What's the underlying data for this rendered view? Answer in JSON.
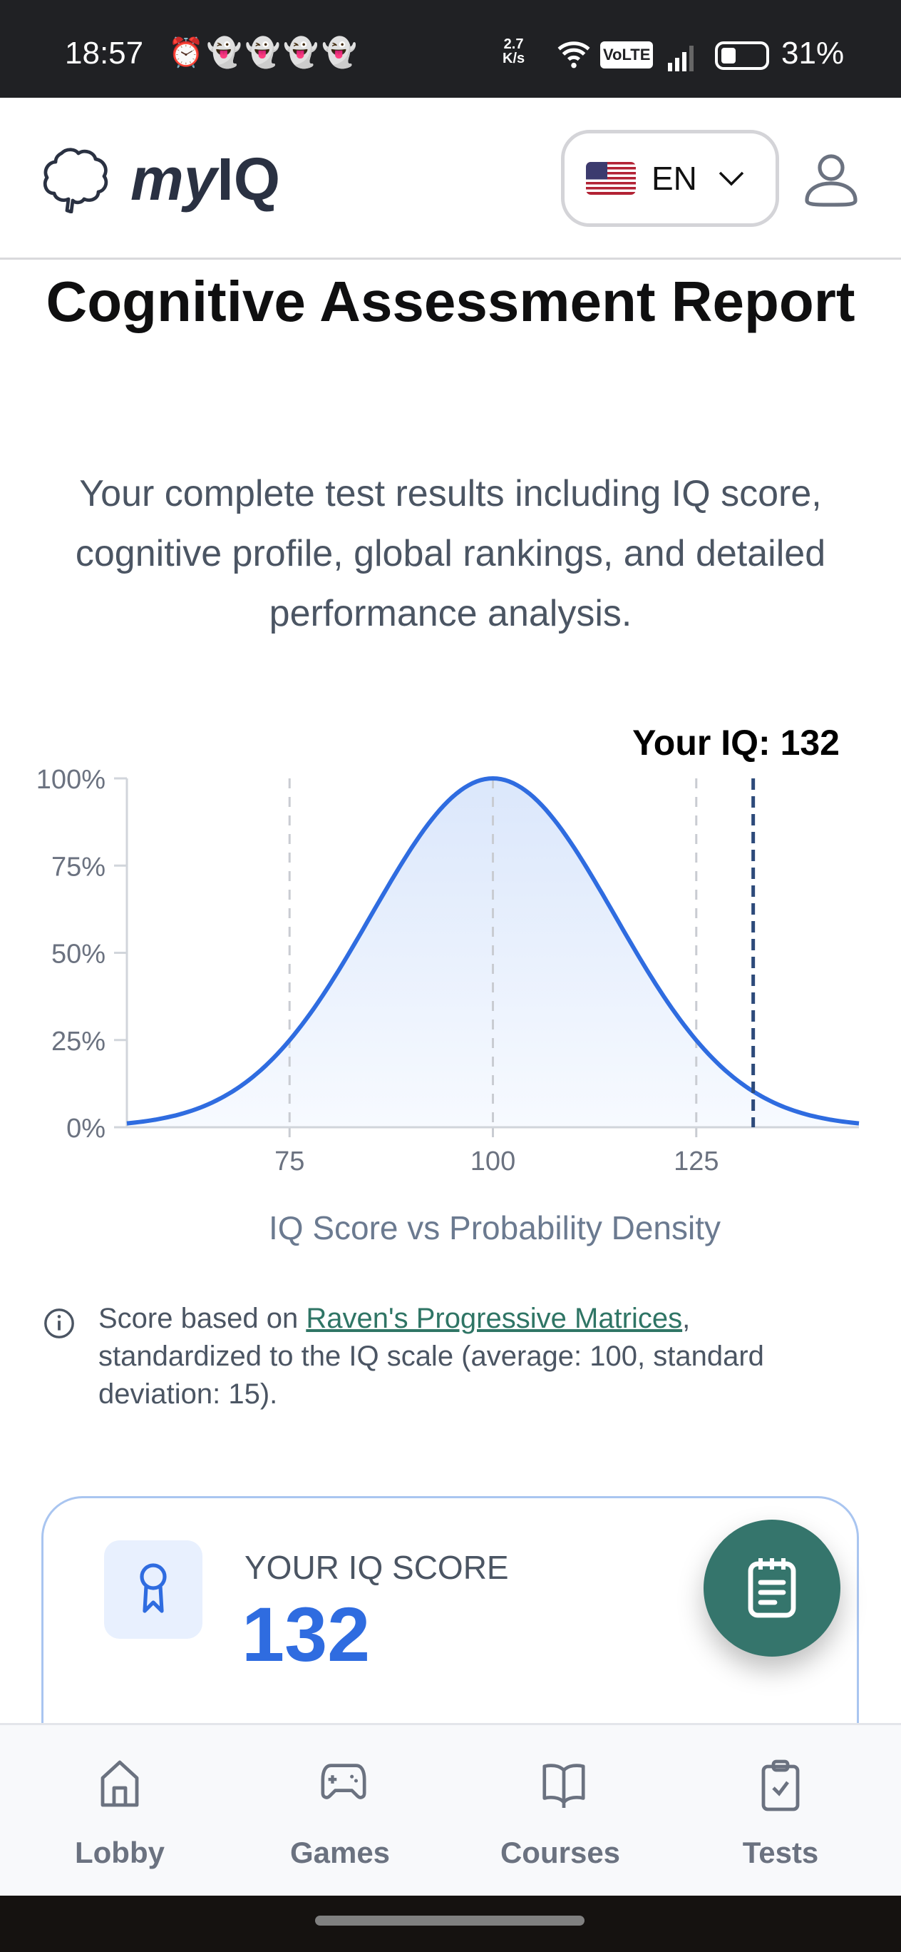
{
  "status_bar": {
    "time": "18:57",
    "network_speed": "2.7",
    "network_unit": "K/s",
    "volte": "VoLTE",
    "battery": "31%",
    "battery_level": 0.31
  },
  "header": {
    "logo_prefix": "my",
    "logo_suffix": "IQ",
    "language": "EN",
    "icons": [
      "brain-icon",
      "us-flag-icon",
      "chevron-down-icon",
      "user-icon"
    ]
  },
  "page": {
    "title": "Cognitive Assessment Report",
    "subtitle": "Your complete test results including IQ score, cognitive profile, global rankings, and detailed performance analysis."
  },
  "chart_data": {
    "type": "area",
    "annotation": "Your IQ: 132",
    "marker_x": 132,
    "xlabel": "IQ Score vs Probability Density",
    "ylabel": "",
    "x_range": [
      55,
      145
    ],
    "ylim": [
      0,
      100
    ],
    "x_ticks": [
      "75",
      "100",
      "125"
    ],
    "y_ticks": [
      "0%",
      "25%",
      "50%",
      "75%",
      "100%"
    ],
    "distribution": {
      "mean": 100,
      "sd": 15,
      "peak_percent": 100
    },
    "grid": "vertical dashed at ticks",
    "line_color": "#2f6ce0",
    "marker_color": "#2d4a7a"
  },
  "note": {
    "prefix": "Score based on ",
    "link": "Raven's Progressive Matrices",
    "suffix": ", standardized to the IQ scale (average: 100, standard deviation: 15)."
  },
  "score_card": {
    "label": "YOUR IQ SCORE",
    "score": "132",
    "accent": "#2f6ce0"
  },
  "fab": {
    "icon": "notepad-icon",
    "color": "#35756c"
  },
  "bottom_nav": [
    {
      "label": "Lobby",
      "icon": "home-icon"
    },
    {
      "label": "Games",
      "icon": "gamepad-icon"
    },
    {
      "label": "Courses",
      "icon": "book-icon"
    },
    {
      "label": "Tests",
      "icon": "clipboard-check-icon"
    }
  ]
}
